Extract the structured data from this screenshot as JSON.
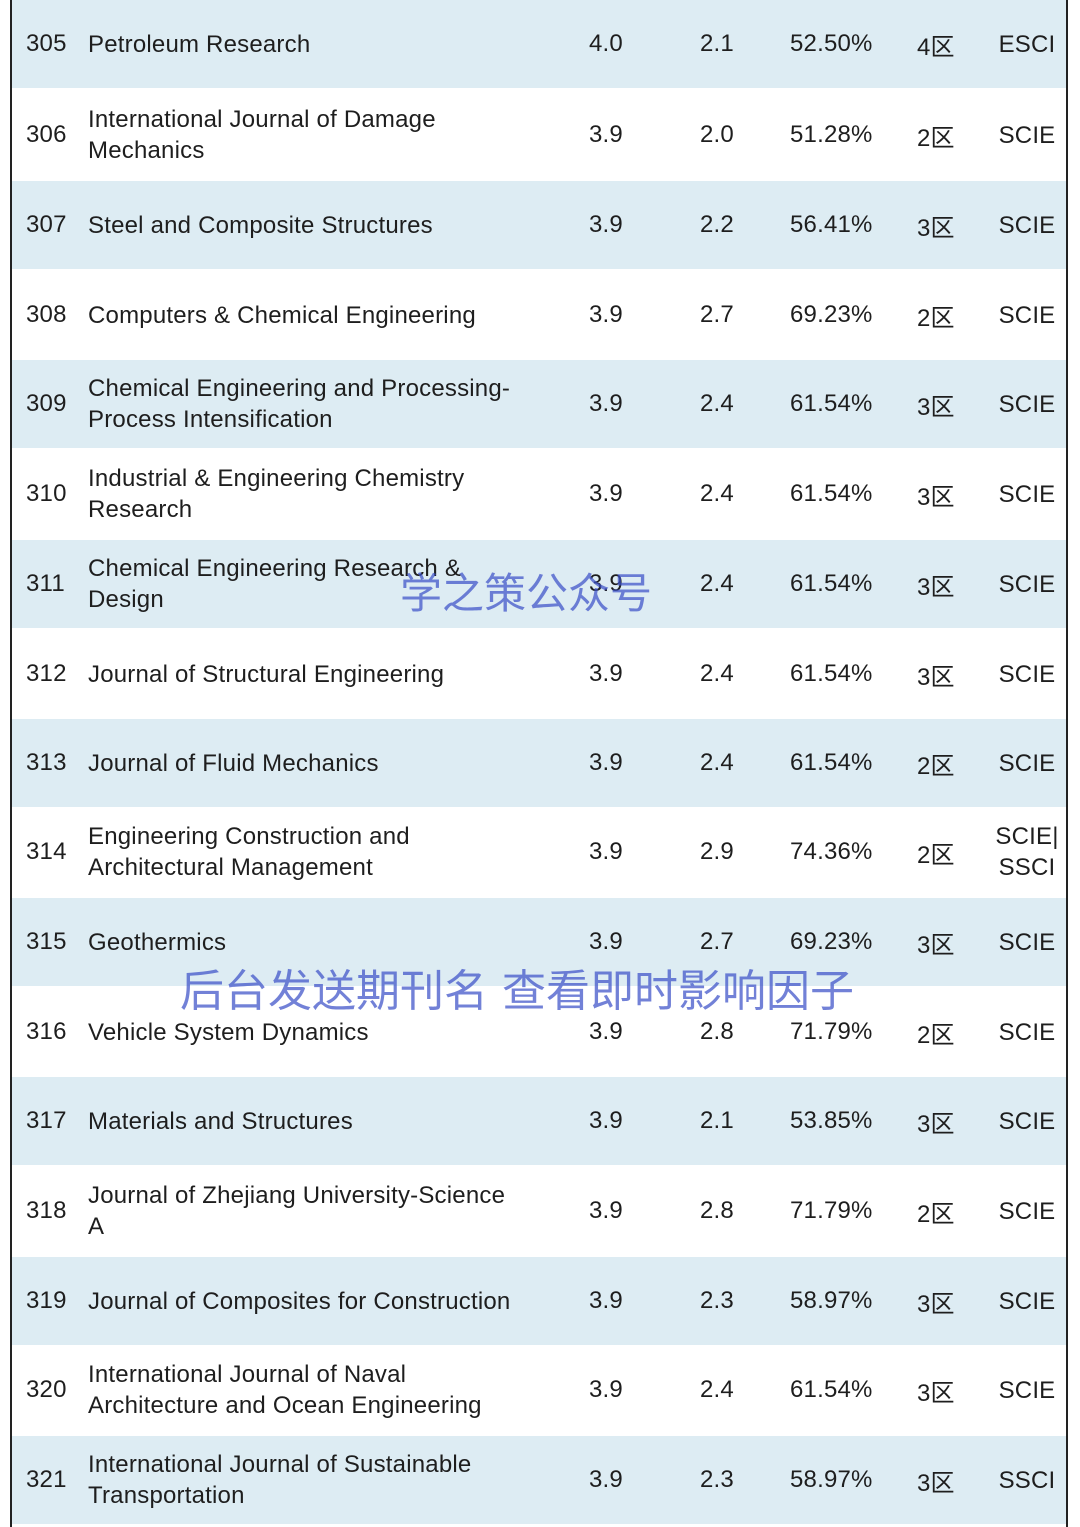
{
  "rows": [
    {
      "rank": "305",
      "name": "Petroleum Research",
      "if5": "4.0",
      "if": "2.1",
      "pct": "52.50%",
      "zone": "4区",
      "index": "ESCI"
    },
    {
      "rank": "306",
      "name": "International Journal of Damage\nMechanics",
      "if5": "3.9",
      "if": "2.0",
      "pct": "51.28%",
      "zone": "2区",
      "index": "SCIE"
    },
    {
      "rank": "307",
      "name": "Steel and Composite Structures",
      "if5": "3.9",
      "if": "2.2",
      "pct": "56.41%",
      "zone": "3区",
      "index": "SCIE"
    },
    {
      "rank": "308",
      "name": "Computers & Chemical Engineering",
      "if5": "3.9",
      "if": "2.7",
      "pct": "69.23%",
      "zone": "2区",
      "index": "SCIE"
    },
    {
      "rank": "309",
      "name": "Chemical Engineering and Processing-\nProcess Intensification",
      "if5": "3.9",
      "if": "2.4",
      "pct": "61.54%",
      "zone": "3区",
      "index": "SCIE"
    },
    {
      "rank": "310",
      "name": "Industrial & Engineering Chemistry\nResearch",
      "if5": "3.9",
      "if": "2.4",
      "pct": "61.54%",
      "zone": "3区",
      "index": "SCIE"
    },
    {
      "rank": "311",
      "name": "Chemical Engineering Research &\nDesign",
      "if5": "3.9",
      "if": "2.4",
      "pct": "61.54%",
      "zone": "3区",
      "index": "SCIE"
    },
    {
      "rank": "312",
      "name": "Journal of Structural Engineering",
      "if5": "3.9",
      "if": "2.4",
      "pct": "61.54%",
      "zone": "3区",
      "index": "SCIE"
    },
    {
      "rank": "313",
      "name": "Journal of Fluid Mechanics",
      "if5": "3.9",
      "if": "2.4",
      "pct": "61.54%",
      "zone": "2区",
      "index": "SCIE"
    },
    {
      "rank": "314",
      "name": "Engineering Construction and\nArchitectural Management",
      "if5": "3.9",
      "if": "2.9",
      "pct": "74.36%",
      "zone": "2区",
      "index": "SCIE|\nSSCI"
    },
    {
      "rank": "315",
      "name": "Geothermics",
      "if5": "3.9",
      "if": "2.7",
      "pct": "69.23%",
      "zone": "3区",
      "index": "SCIE"
    },
    {
      "rank": "316",
      "name": "Vehicle System Dynamics",
      "if5": "3.9",
      "if": "2.8",
      "pct": "71.79%",
      "zone": "2区",
      "index": "SCIE"
    },
    {
      "rank": "317",
      "name": "Materials and Structures",
      "if5": "3.9",
      "if": "2.1",
      "pct": "53.85%",
      "zone": "3区",
      "index": "SCIE"
    },
    {
      "rank": "318",
      "name": "Journal of Zhejiang University-Science\nA",
      "if5": "3.9",
      "if": "2.8",
      "pct": "71.79%",
      "zone": "2区",
      "index": "SCIE"
    },
    {
      "rank": "319",
      "name": "Journal of Composites for Construction",
      "if5": "3.9",
      "if": "2.3",
      "pct": "58.97%",
      "zone": "3区",
      "index": "SCIE"
    },
    {
      "rank": "320",
      "name": "International Journal of Naval\nArchitecture and Ocean Engineering",
      "if5": "3.9",
      "if": "2.4",
      "pct": "61.54%",
      "zone": "3区",
      "index": "SCIE"
    },
    {
      "rank": "321",
      "name": "International Journal of Sustainable\nTransportation",
      "if5": "3.9",
      "if": "2.3",
      "pct": "58.97%",
      "zone": "3区",
      "index": "SSCI"
    }
  ],
  "watermarks": {
    "top": "学之策公众号",
    "middle": "后台发送期刊名 查看即时影响因子"
  },
  "colors": {
    "shaded_row": "#ddecf3",
    "watermark": "#3c50c8"
  }
}
